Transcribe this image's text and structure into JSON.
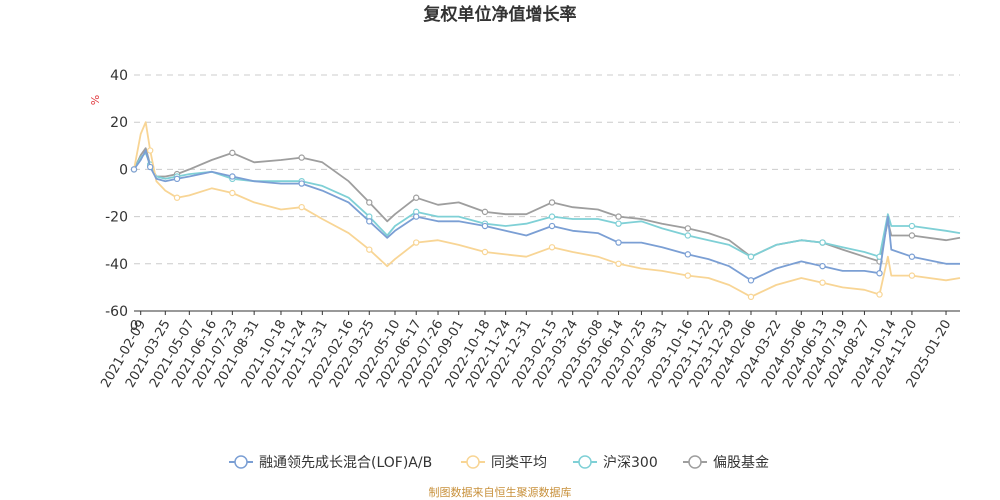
{
  "chart_data": {
    "type": "line",
    "title": "复权单位净值增长率",
    "yunit": "%",
    "ylim": [
      -60,
      40
    ],
    "yticks": [
      -60,
      -40,
      -20,
      0,
      20,
      40
    ],
    "x_start": "2021-01-28",
    "x_end": "2025-02-14",
    "x_origin_label": "0",
    "xticks": [
      "2021-02-09",
      "2021-03-25",
      "2021-05-07",
      "2021-06-16",
      "2021-07-23",
      "2021-08-31",
      "2021-10-18",
      "2021-11-24",
      "2021-12-31",
      "2022-02-16",
      "2022-03-25",
      "2022-05-10",
      "2022-06-17",
      "2022-07-26",
      "2022-09-01",
      "2022-10-18",
      "2022-11-24",
      "2022-12-31",
      "2023-02-15",
      "2023-03-24",
      "2023-05-08",
      "2023-06-14",
      "2023-07-25",
      "2023-08-31",
      "2023-10-16",
      "2023-11-22",
      "2023-12-29",
      "2024-02-06",
      "2024-03-22",
      "2024-05-06",
      "2024-06-13",
      "2024-07-19",
      "2024-08-27",
      "2024-10-14",
      "2024-11-20",
      "2025-01-20"
    ],
    "grid": true,
    "legend_position": "bottom",
    "series": [
      {
        "name": "融通领先成长混合(LOF)A/B",
        "color": "#7b9fd4",
        "points": [
          [
            "2021-01-28",
            0
          ],
          [
            "2021-02-09",
            4
          ],
          [
            "2021-02-18",
            8
          ],
          [
            "2021-02-26",
            1
          ],
          [
            "2021-03-09",
            -4
          ],
          [
            "2021-03-25",
            -5
          ],
          [
            "2021-04-15",
            -4
          ],
          [
            "2021-05-07",
            -3
          ],
          [
            "2021-06-16",
            -1
          ],
          [
            "2021-07-23",
            -3
          ],
          [
            "2021-08-31",
            -5
          ],
          [
            "2021-10-18",
            -6
          ],
          [
            "2021-11-24",
            -6
          ],
          [
            "2021-12-31",
            -9
          ],
          [
            "2022-02-16",
            -14
          ],
          [
            "2022-03-25",
            -22
          ],
          [
            "2022-04-26",
            -29
          ],
          [
            "2022-05-10",
            -26
          ],
          [
            "2022-06-17",
            -20
          ],
          [
            "2022-07-26",
            -22
          ],
          [
            "2022-09-01",
            -22
          ],
          [
            "2022-10-18",
            -24
          ],
          [
            "2022-11-24",
            -26
          ],
          [
            "2022-12-31",
            -28
          ],
          [
            "2023-02-15",
            -24
          ],
          [
            "2023-03-24",
            -26
          ],
          [
            "2023-05-08",
            -27
          ],
          [
            "2023-06-14",
            -31
          ],
          [
            "2023-07-25",
            -31
          ],
          [
            "2023-08-31",
            -33
          ],
          [
            "2023-10-16",
            -36
          ],
          [
            "2023-11-22",
            -38
          ],
          [
            "2023-12-29",
            -41
          ],
          [
            "2024-02-06",
            -47
          ],
          [
            "2024-03-22",
            -42
          ],
          [
            "2024-05-06",
            -39
          ],
          [
            "2024-06-13",
            -41
          ],
          [
            "2024-07-19",
            -43
          ],
          [
            "2024-08-27",
            -43
          ],
          [
            "2024-09-23",
            -44
          ],
          [
            "2024-10-08",
            -20
          ],
          [
            "2024-10-14",
            -34
          ],
          [
            "2024-11-20",
            -37
          ],
          [
            "2025-01-20",
            -40
          ],
          [
            "2025-02-14",
            -40
          ]
        ]
      },
      {
        "name": "同类平均",
        "color": "#f8d595",
        "points": [
          [
            "2021-01-28",
            0
          ],
          [
            "2021-02-09",
            15
          ],
          [
            "2021-02-18",
            20
          ],
          [
            "2021-02-26",
            8
          ],
          [
            "2021-03-09",
            -5
          ],
          [
            "2021-03-25",
            -9
          ],
          [
            "2021-04-15",
            -12
          ],
          [
            "2021-05-07",
            -11
          ],
          [
            "2021-06-16",
            -8
          ],
          [
            "2021-07-23",
            -10
          ],
          [
            "2021-08-31",
            -14
          ],
          [
            "2021-10-18",
            -17
          ],
          [
            "2021-11-24",
            -16
          ],
          [
            "2021-12-31",
            -21
          ],
          [
            "2022-02-16",
            -27
          ],
          [
            "2022-03-25",
            -34
          ],
          [
            "2022-04-26",
            -41
          ],
          [
            "2022-05-10",
            -38
          ],
          [
            "2022-06-17",
            -31
          ],
          [
            "2022-07-26",
            -30
          ],
          [
            "2022-09-01",
            -32
          ],
          [
            "2022-10-18",
            -35
          ],
          [
            "2022-11-24",
            -36
          ],
          [
            "2022-12-31",
            -37
          ],
          [
            "2023-02-15",
            -33
          ],
          [
            "2023-03-24",
            -35
          ],
          [
            "2023-05-08",
            -37
          ],
          [
            "2023-06-14",
            -40
          ],
          [
            "2023-07-25",
            -42
          ],
          [
            "2023-08-31",
            -43
          ],
          [
            "2023-10-16",
            -45
          ],
          [
            "2023-11-22",
            -46
          ],
          [
            "2023-12-29",
            -49
          ],
          [
            "2024-02-06",
            -54
          ],
          [
            "2024-03-22",
            -49
          ],
          [
            "2024-05-06",
            -46
          ],
          [
            "2024-06-13",
            -48
          ],
          [
            "2024-07-19",
            -50
          ],
          [
            "2024-08-27",
            -51
          ],
          [
            "2024-09-23",
            -53
          ],
          [
            "2024-10-08",
            -37
          ],
          [
            "2024-10-14",
            -45
          ],
          [
            "2024-11-20",
            -45
          ],
          [
            "2025-01-20",
            -47
          ],
          [
            "2025-02-14",
            -46
          ]
        ]
      },
      {
        "name": "沪深300",
        "color": "#7fd0d6",
        "points": [
          [
            "2021-01-28",
            0
          ],
          [
            "2021-02-09",
            5
          ],
          [
            "2021-02-18",
            7
          ],
          [
            "2021-02-26",
            2
          ],
          [
            "2021-03-09",
            -3
          ],
          [
            "2021-03-25",
            -4
          ],
          [
            "2021-04-15",
            -3
          ],
          [
            "2021-05-07",
            -2
          ],
          [
            "2021-06-16",
            -1
          ],
          [
            "2021-07-23",
            -4
          ],
          [
            "2021-08-31",
            -5
          ],
          [
            "2021-10-18",
            -5
          ],
          [
            "2021-11-24",
            -5
          ],
          [
            "2021-12-31",
            -7
          ],
          [
            "2022-02-16",
            -12
          ],
          [
            "2022-03-25",
            -20
          ],
          [
            "2022-04-26",
            -28
          ],
          [
            "2022-05-10",
            -24
          ],
          [
            "2022-06-17",
            -18
          ],
          [
            "2022-07-26",
            -20
          ],
          [
            "2022-09-01",
            -20
          ],
          [
            "2022-10-18",
            -23
          ],
          [
            "2022-11-24",
            -24
          ],
          [
            "2022-12-31",
            -23
          ],
          [
            "2023-02-15",
            -20
          ],
          [
            "2023-03-24",
            -21
          ],
          [
            "2023-05-08",
            -21
          ],
          [
            "2023-06-14",
            -23
          ],
          [
            "2023-07-25",
            -22
          ],
          [
            "2023-08-31",
            -25
          ],
          [
            "2023-10-16",
            -28
          ],
          [
            "2023-11-22",
            -30
          ],
          [
            "2023-12-29",
            -32
          ],
          [
            "2024-02-06",
            -37
          ],
          [
            "2024-03-22",
            -32
          ],
          [
            "2024-05-06",
            -30
          ],
          [
            "2024-06-13",
            -31
          ],
          [
            "2024-07-19",
            -33
          ],
          [
            "2024-08-27",
            -35
          ],
          [
            "2024-09-23",
            -37
          ],
          [
            "2024-10-08",
            -19
          ],
          [
            "2024-10-14",
            -24
          ],
          [
            "2024-11-20",
            -24
          ],
          [
            "2025-01-20",
            -26
          ],
          [
            "2025-02-14",
            -27
          ]
        ]
      },
      {
        "name": "偏股基金",
        "color": "#9e9e9e",
        "points": [
          [
            "2021-01-28",
            0
          ],
          [
            "2021-02-09",
            6
          ],
          [
            "2021-02-18",
            9
          ],
          [
            "2021-02-26",
            2
          ],
          [
            "2021-03-09",
            -3
          ],
          [
            "2021-03-25",
            -3
          ],
          [
            "2021-04-15",
            -2
          ],
          [
            "2021-05-07",
            0
          ],
          [
            "2021-06-16",
            4
          ],
          [
            "2021-07-23",
            7
          ],
          [
            "2021-08-31",
            3
          ],
          [
            "2021-10-18",
            4
          ],
          [
            "2021-11-24",
            5
          ],
          [
            "2021-12-31",
            3
          ],
          [
            "2022-02-16",
            -5
          ],
          [
            "2022-03-25",
            -14
          ],
          [
            "2022-04-26",
            -22
          ],
          [
            "2022-05-10",
            -19
          ],
          [
            "2022-06-17",
            -12
          ],
          [
            "2022-07-26",
            -15
          ],
          [
            "2022-09-01",
            -14
          ],
          [
            "2022-10-18",
            -18
          ],
          [
            "2022-11-24",
            -19
          ],
          [
            "2022-12-31",
            -19
          ],
          [
            "2023-02-15",
            -14
          ],
          [
            "2023-03-24",
            -16
          ],
          [
            "2023-05-08",
            -17
          ],
          [
            "2023-06-14",
            -20
          ],
          [
            "2023-07-25",
            -21
          ],
          [
            "2023-08-31",
            -23
          ],
          [
            "2023-10-16",
            -25
          ],
          [
            "2023-11-22",
            -27
          ],
          [
            "2023-12-29",
            -30
          ],
          [
            "2024-02-06",
            -37
          ],
          [
            "2024-03-22",
            -32
          ],
          [
            "2024-05-06",
            -30
          ],
          [
            "2024-06-13",
            -31
          ],
          [
            "2024-07-19",
            -34
          ],
          [
            "2024-08-27",
            -37
          ],
          [
            "2024-09-23",
            -39
          ],
          [
            "2024-10-08",
            -22
          ],
          [
            "2024-10-14",
            -28
          ],
          [
            "2024-11-20",
            -28
          ],
          [
            "2025-01-20",
            -30
          ],
          [
            "2025-02-14",
            -29
          ]
        ]
      }
    ]
  },
  "source_note": "制图数据来自恒生聚源数据库"
}
